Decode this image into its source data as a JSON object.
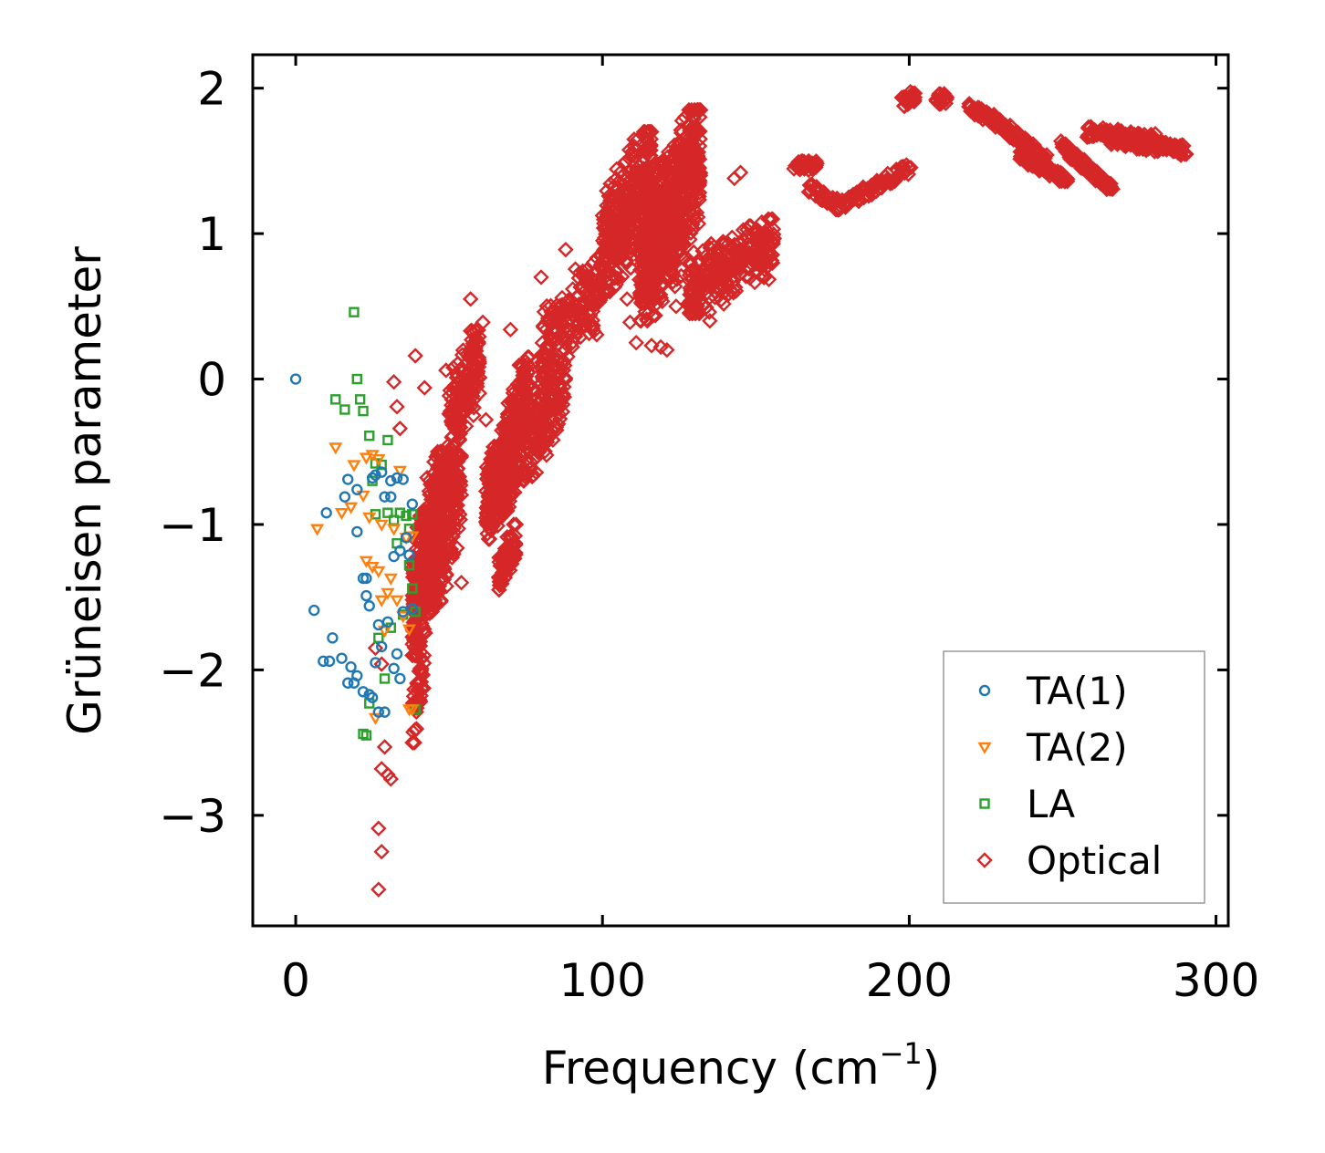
{
  "chart_data": {
    "type": "scatter",
    "title": "",
    "xlabel": "Frequency (cm",
    "xlabel_sup": "−1",
    "xlabel_end": ")",
    "ylabel": "Grüneisen parameter",
    "xlim": [
      -14,
      304
    ],
    "ylim": [
      -3.76,
      2.23
    ],
    "x_ticks": [
      0,
      100,
      200,
      300
    ],
    "x_tick_labels": [
      "0",
      "100",
      "200",
      "300"
    ],
    "y_ticks": [
      -3,
      -2,
      -1,
      0,
      1,
      2
    ],
    "y_tick_labels": [
      "−3",
      "−2",
      "−1",
      "0",
      "1",
      "2"
    ],
    "grid": false,
    "legend_position": "bottom-right",
    "series": [
      {
        "name": "TA(1)",
        "marker": "circle",
        "color": "#1f77b4",
        "points": [
          [
            0,
            0
          ],
          [
            6,
            -1.59
          ],
          [
            9,
            -1.94
          ],
          [
            10,
            -0.92
          ],
          [
            11,
            -1.94
          ],
          [
            12,
            -1.78
          ],
          [
            15,
            -1.92
          ],
          [
            16,
            -0.81
          ],
          [
            17,
            -0.69
          ],
          [
            17,
            -2.09
          ],
          [
            18,
            -1.98
          ],
          [
            19,
            -2.09
          ],
          [
            20,
            -2.04
          ],
          [
            20,
            -1.05
          ],
          [
            20,
            -0.76
          ],
          [
            22,
            -2.15
          ],
          [
            22,
            -1.37
          ],
          [
            23,
            -1.37
          ],
          [
            23,
            -1.49
          ],
          [
            24,
            -1.56
          ],
          [
            24,
            -2.17
          ],
          [
            25,
            -0.68
          ],
          [
            25,
            -2.19
          ],
          [
            26,
            -1.95
          ],
          [
            26,
            -0.66
          ],
          [
            27,
            -2.29
          ],
          [
            27,
            -1.69
          ],
          [
            28,
            -1.84
          ],
          [
            28,
            -0.64
          ],
          [
            29,
            -0.81
          ],
          [
            29,
            -2.29
          ],
          [
            30,
            -1.67
          ],
          [
            31,
            -0.7
          ],
          [
            31,
            -0.81
          ],
          [
            32,
            -1.22
          ],
          [
            32,
            -1.99
          ],
          [
            33,
            -1.89
          ],
          [
            33,
            -0.68
          ],
          [
            34,
            -2.06
          ],
          [
            34,
            -1.18
          ],
          [
            35,
            -1.6
          ],
          [
            35,
            -0.69
          ],
          [
            36,
            -1.09
          ],
          [
            37,
            -1.21
          ],
          [
            38,
            -1.58
          ],
          [
            38,
            -0.86
          ]
        ]
      },
      {
        "name": "TA(2)",
        "marker": "triangle-down",
        "color": "#ff7f0e",
        "points": [
          [
            7,
            -1.03
          ],
          [
            13,
            -0.47
          ],
          [
            15,
            -0.92
          ],
          [
            18,
            -0.88
          ],
          [
            19,
            -0.59
          ],
          [
            22,
            -0.8
          ],
          [
            23,
            -0.54
          ],
          [
            23,
            -1.25
          ],
          [
            24,
            -0.95
          ],
          [
            25,
            -1.29
          ],
          [
            25,
            -0.52
          ],
          [
            26,
            -2.33
          ],
          [
            27,
            -0.55
          ],
          [
            27,
            -1.32
          ],
          [
            28,
            -1.52
          ],
          [
            28,
            -1.0
          ],
          [
            29,
            -1.73
          ],
          [
            30,
            -1.47
          ],
          [
            31,
            -1.37
          ],
          [
            32,
            -1.03
          ],
          [
            33,
            -1.52
          ],
          [
            34,
            -0.63
          ],
          [
            35,
            -1.63
          ],
          [
            36,
            -1.09
          ],
          [
            37,
            -1.72
          ],
          [
            37,
            -2.27
          ],
          [
            38,
            -1.08
          ],
          [
            38,
            -2.27
          ]
        ]
      },
      {
        "name": "LA",
        "marker": "square",
        "color": "#2ca02c",
        "points": [
          [
            19,
            0.46
          ],
          [
            20,
            0
          ],
          [
            13,
            -0.14
          ],
          [
            16,
            -0.21
          ],
          [
            21,
            -0.14
          ],
          [
            22,
            -0.22
          ],
          [
            24,
            -0.39
          ],
          [
            25,
            -0.7
          ],
          [
            26,
            -0.58
          ],
          [
            26,
            -0.93
          ],
          [
            27,
            -1.78
          ],
          [
            28,
            -0.59
          ],
          [
            29,
            -2.06
          ],
          [
            30,
            -0.42
          ],
          [
            30,
            -0.92
          ],
          [
            31,
            -1.71
          ],
          [
            32,
            -0.97
          ],
          [
            33,
            -1.13
          ],
          [
            34,
            -0.92
          ],
          [
            35,
            -1.62
          ],
          [
            36,
            -0.94
          ],
          [
            37,
            -1.03
          ],
          [
            37,
            -1.28
          ],
          [
            38,
            -0.93
          ],
          [
            38,
            -1.44
          ],
          [
            39,
            -1.6
          ],
          [
            39,
            -2.27
          ],
          [
            23,
            -2.45
          ],
          [
            24,
            -2.23
          ],
          [
            22,
            -2.44
          ]
        ]
      },
      {
        "name": "Optical",
        "marker": "diamond",
        "color": "#d62728",
        "clusters": [
          {
            "x": [
              38,
              48
            ],
            "y": [
              -1.9,
              -0.5
            ],
            "n": 500
          },
          {
            "x": [
              44,
              54
            ],
            "y": [
              -1.6,
              -0.3
            ],
            "n": 200
          },
          {
            "x": [
              38,
              42
            ],
            "y": [
              -2.5,
              -1.9
            ],
            "n": 40
          },
          {
            "x": [
              50,
              60
            ],
            "y": [
              -0.5,
              0.35
            ],
            "n": 150
          },
          {
            "x": [
              62,
              73
            ],
            "y": [
              -1.1,
              -0.2
            ],
            "n": 320
          },
          {
            "x": [
              66,
              72
            ],
            "y": [
              -1.45,
              -1.0
            ],
            "n": 80
          },
          {
            "x": [
              68,
              76
            ],
            "y": [
              -0.6,
              0.15
            ],
            "n": 120
          },
          {
            "x": [
              74,
              88
            ],
            "y": [
              -0.7,
              0.2
            ],
            "n": 190
          },
          {
            "x": [
              80,
              100
            ],
            "y": [
              0.0,
              0.85
            ],
            "n": 180
          },
          {
            "x": [
              100,
              116
            ],
            "y": [
              0.6,
              1.7
            ],
            "n": 350
          },
          {
            "x": [
              112,
              132
            ],
            "y": [
              0.4,
              1.85
            ],
            "n": 600
          },
          {
            "x": [
              128,
              156
            ],
            "y": [
              0.45,
              1.1
            ],
            "n": 260
          }
        ],
        "paths": [
          {
            "x": [
              163,
              170
            ],
            "y": [
              1.46,
              1.48
            ],
            "n": 30
          },
          {
            "x": [
              167,
              178
            ],
            "y": [
              1.32,
              1.18
            ],
            "n": 40
          },
          {
            "x": [
              178,
              200
            ],
            "y": [
              1.2,
              1.45
            ],
            "n": 70
          },
          {
            "x": [
              198,
              202
            ],
            "y": [
              1.9,
              1.95
            ],
            "n": 30
          },
          {
            "x": [
              209,
              212
            ],
            "y": [
              1.92,
              1.93
            ],
            "n": 22
          },
          {
            "x": [
              219,
              230
            ],
            "y": [
              1.88,
              1.75
            ],
            "n": 40
          },
          {
            "x": [
              230,
              245
            ],
            "y": [
              1.75,
              1.5
            ],
            "n": 60
          },
          {
            "x": [
              236,
              252
            ],
            "y": [
              1.55,
              1.35
            ],
            "n": 70
          },
          {
            "x": [
              250,
              266
            ],
            "y": [
              1.6,
              1.3
            ],
            "n": 90
          },
          {
            "x": [
              258,
              280
            ],
            "y": [
              1.7,
              1.65
            ],
            "n": 110
          },
          {
            "x": [
              266,
              290
            ],
            "y": [
              1.65,
              1.57
            ],
            "n": 110
          }
        ],
        "points": [
          [
            27,
            -3.09
          ],
          [
            28,
            -3.25
          ],
          [
            27,
            -3.51
          ],
          [
            28,
            -2.68
          ],
          [
            29,
            -2.53
          ],
          [
            30,
            -2.72
          ],
          [
            31,
            -2.75
          ],
          [
            26,
            -1.85
          ],
          [
            28,
            -1.96
          ],
          [
            32,
            -0.02
          ],
          [
            33,
            -0.19
          ],
          [
            34,
            -0.34
          ],
          [
            39,
            0.16
          ],
          [
            42,
            -0.06
          ],
          [
            49,
            0.06
          ],
          [
            50,
            -0.24
          ],
          [
            54,
            -1.4
          ],
          [
            57,
            0.55
          ],
          [
            61,
            0.39
          ],
          [
            62,
            -0.28
          ],
          [
            70,
            0.34
          ],
          [
            80,
            0.7
          ],
          [
            88,
            0.89
          ],
          [
            100,
            0.57
          ],
          [
            108,
            0.55
          ],
          [
            109,
            0.39
          ],
          [
            111,
            0.25
          ],
          [
            116,
            0.23
          ],
          [
            119,
            0.22
          ],
          [
            121,
            0.2
          ],
          [
            124,
            0.5
          ],
          [
            135,
            0.4
          ],
          [
            140,
            0.6
          ],
          [
            143,
            1.38
          ],
          [
            145,
            1.42
          ],
          [
            142,
            0.9
          ]
        ]
      }
    ]
  }
}
